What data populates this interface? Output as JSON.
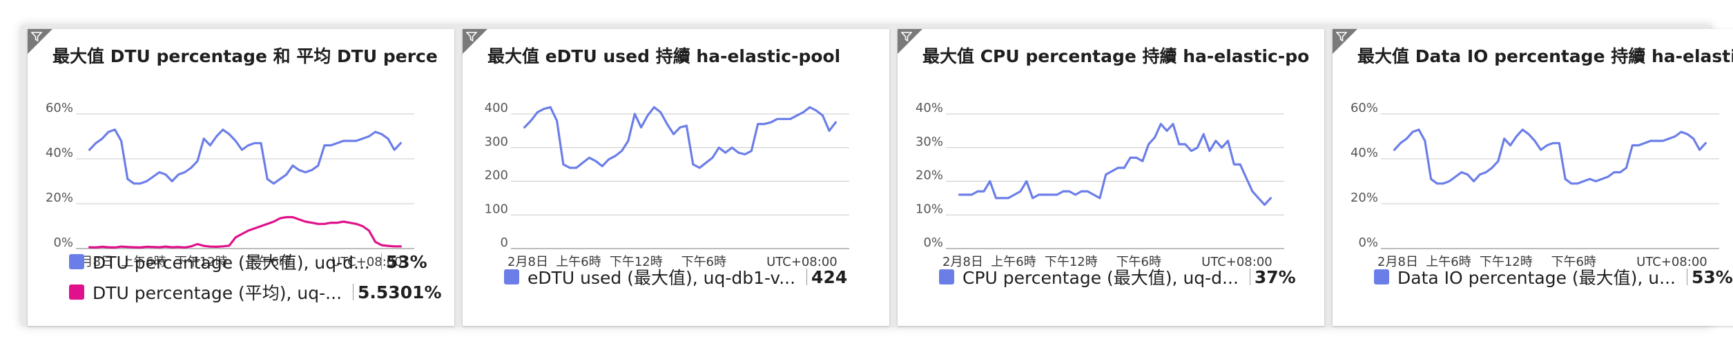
{
  "colors": {
    "blue": "#6b7ee8",
    "magenta": "#e0118a"
  },
  "icons": {
    "tile_corner": "filter-icon"
  },
  "chart_data": [
    {
      "type": "line",
      "title": "最大值 DTU percentage 和 平均 DTU percen...",
      "y_ticks": [
        "60%",
        "40%",
        "20%",
        "0%"
      ],
      "ylim": [
        0,
        60
      ],
      "x_ticks": [
        "2月8日",
        "上午6時",
        "下午12時",
        "下午6時",
        "UTC+08:00"
      ],
      "series": [
        {
          "name": "DTU percentage (最大值), uq-d...",
          "value": "53%",
          "color": "#6b7ee8",
          "values": [
            44,
            47,
            49,
            52,
            53,
            48,
            31,
            29,
            29,
            30,
            32,
            34,
            33,
            30,
            33,
            34,
            36,
            39,
            49,
            46,
            50,
            53,
            51,
            48,
            44,
            46,
            47,
            47,
            31,
            29,
            31,
            33,
            37,
            35,
            34,
            35,
            37,
            46,
            46,
            47,
            48,
            48,
            48,
            49,
            50,
            52,
            51,
            49,
            44,
            47
          ]
        },
        {
          "name": "DTU percentage (平均), uq-...",
          "value": "5.5301%",
          "color": "#e0118a",
          "values": [
            0.6,
            0.5,
            0.8,
            0.6,
            0.5,
            0.9,
            0.7,
            0.6,
            0.5,
            0.8,
            0.7,
            0.6,
            0.9,
            0.6,
            0.7,
            0.5,
            1.0,
            2.0,
            1.2,
            0.9,
            0.8,
            1.0,
            1.3,
            5.0,
            6.5,
            8.0,
            9.0,
            10.0,
            11.0,
            12.0,
            13.5,
            14.0,
            14.0,
            13.0,
            12.0,
            11.5,
            11.0,
            11.0,
            11.5,
            11.5,
            12.0,
            11.5,
            11.0,
            10.0,
            8.0,
            3.0,
            1.5,
            1.2,
            1.0,
            1.0
          ]
        }
      ]
    },
    {
      "type": "line",
      "title": "最大值 eDTU used 持續 ha-elastic-pool",
      "y_ticks": [
        "400",
        "300",
        "200",
        "100",
        "0"
      ],
      "ylim": [
        0,
        400
      ],
      "x_ticks": [
        "2月8日",
        "上午6時",
        "下午12時",
        "下午6時",
        "UTC+08:00"
      ],
      "series": [
        {
          "name": "eDTU used (最大值), uq-db1-v...",
          "value": "424",
          "color": "#6b7ee8",
          "values": [
            360,
            380,
            405,
            415,
            420,
            380,
            250,
            240,
            240,
            255,
            270,
            260,
            245,
            265,
            275,
            290,
            320,
            400,
            360,
            395,
            420,
            405,
            370,
            340,
            360,
            365,
            250,
            240,
            255,
            270,
            300,
            285,
            300,
            285,
            280,
            290,
            370,
            370,
            375,
            385,
            385,
            385,
            395,
            405,
            420,
            410,
            395,
            350,
            375
          ]
        }
      ]
    },
    {
      "type": "line",
      "title": "最大值 CPU percentage 持續 ha-elastic-pool",
      "y_ticks": [
        "40%",
        "30%",
        "20%",
        "10%",
        "0%"
      ],
      "ylim": [
        0,
        40
      ],
      "x_ticks": [
        "2月8日",
        "上午6時",
        "下午12時",
        "下午6時",
        "UTC+08:00"
      ],
      "series": [
        {
          "name": "CPU percentage (最大值), uq-d...",
          "value": "37%",
          "color": "#6b7ee8",
          "values": [
            16,
            16,
            16,
            17,
            17,
            20,
            15,
            15,
            15,
            16,
            17,
            20,
            15,
            16,
            16,
            16,
            16,
            17,
            17,
            16,
            17,
            17,
            16,
            15,
            22,
            23,
            24,
            24,
            27,
            27,
            26,
            31,
            33,
            37,
            35,
            37,
            31,
            31,
            29,
            30,
            34,
            29,
            32,
            30,
            32,
            25,
            25,
            21,
            17,
            15,
            13,
            15
          ]
        }
      ]
    },
    {
      "type": "line",
      "title": "最大值 Data IO percentage 持續 ha-elastic-...",
      "y_ticks": [
        "60%",
        "40%",
        "20%",
        "0%"
      ],
      "ylim": [
        0,
        60
      ],
      "x_ticks": [
        "2月8日",
        "上午6時",
        "下午12時",
        "下午6時",
        "UTC+08:00"
      ],
      "series": [
        {
          "name": "Data IO percentage (最大值), u...",
          "value": "53%",
          "color": "#6b7ee8",
          "values": [
            44,
            47,
            49,
            52,
            53,
            48,
            31,
            29,
            29,
            30,
            32,
            34,
            33,
            30,
            33,
            34,
            36,
            39,
            49,
            46,
            50,
            53,
            51,
            48,
            44,
            46,
            47,
            47,
            31,
            29,
            29,
            30,
            31,
            30,
            31,
            32,
            34,
            34,
            36,
            46,
            46,
            47,
            48,
            48,
            48,
            49,
            50,
            52,
            51,
            49,
            44,
            47
          ]
        }
      ]
    }
  ]
}
